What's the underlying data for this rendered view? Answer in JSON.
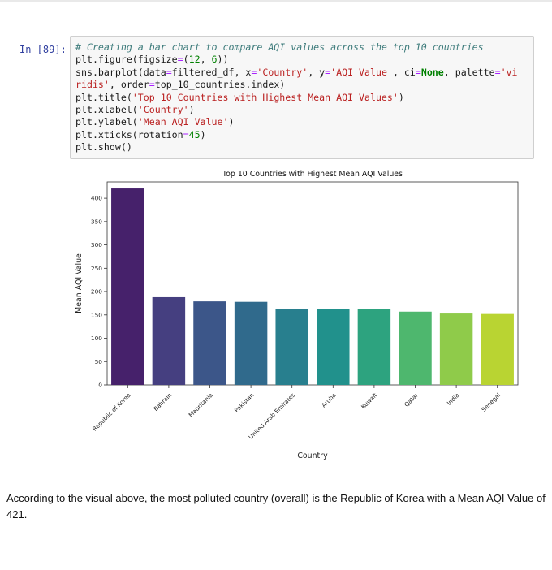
{
  "cell": {
    "prompt": "In [89]:",
    "code_lines": [
      [
        {
          "t": "# Creating a bar chart to compare AQI values across the top 10 countries",
          "c": "cm"
        }
      ],
      [
        {
          "t": "plt.figure(figsize",
          "c": ""
        },
        {
          "t": "=",
          "c": "op"
        },
        {
          "t": "(",
          "c": ""
        },
        {
          "t": "12",
          "c": "nm"
        },
        {
          "t": ", ",
          "c": ""
        },
        {
          "t": "6",
          "c": "nm"
        },
        {
          "t": "))",
          "c": ""
        }
      ],
      [
        {
          "t": "sns.barplot(data",
          "c": ""
        },
        {
          "t": "=",
          "c": "op"
        },
        {
          "t": "filtered_df, x",
          "c": ""
        },
        {
          "t": "=",
          "c": "op"
        },
        {
          "t": "'Country'",
          "c": "st"
        },
        {
          "t": ", y",
          "c": ""
        },
        {
          "t": "=",
          "c": "op"
        },
        {
          "t": "'AQI Value'",
          "c": "st"
        },
        {
          "t": ", ci",
          "c": ""
        },
        {
          "t": "=",
          "c": "op"
        },
        {
          "t": "None",
          "c": "kw"
        },
        {
          "t": ", palette",
          "c": ""
        },
        {
          "t": "=",
          "c": "op"
        },
        {
          "t": "'vi",
          "c": "st"
        }
      ],
      [
        {
          "t": "ridis'",
          "c": "st"
        },
        {
          "t": ", order",
          "c": ""
        },
        {
          "t": "=",
          "c": "op"
        },
        {
          "t": "top_10_countries.index)",
          "c": ""
        }
      ],
      [
        {
          "t": "plt.title(",
          "c": ""
        },
        {
          "t": "'Top 10 Countries with Highest Mean AQI Values'",
          "c": "st"
        },
        {
          "t": ")",
          "c": ""
        }
      ],
      [
        {
          "t": "plt.xlabel(",
          "c": ""
        },
        {
          "t": "'Country'",
          "c": "st"
        },
        {
          "t": ")",
          "c": ""
        }
      ],
      [
        {
          "t": "plt.ylabel(",
          "c": ""
        },
        {
          "t": "'Mean AQI Value'",
          "c": "st"
        },
        {
          "t": ")",
          "c": ""
        }
      ],
      [
        {
          "t": "plt.xticks(rotation",
          "c": ""
        },
        {
          "t": "=",
          "c": "op"
        },
        {
          "t": "45",
          "c": "nm"
        },
        {
          "t": ")",
          "c": ""
        }
      ],
      [
        {
          "t": "plt.show()",
          "c": ""
        }
      ]
    ]
  },
  "chart_data": {
    "type": "bar",
    "title": "Top 10 Countries with Highest Mean AQI Values",
    "xlabel": "Country",
    "ylabel": "Mean AQI Value",
    "categories": [
      "Republic of Korea",
      "Bahrain",
      "Mauritania",
      "Pakistan",
      "United Arab Emirates",
      "Aruba",
      "Kuwait",
      "Qatar",
      "India",
      "Senegal"
    ],
    "values": [
      421,
      188,
      179,
      178,
      163,
      163,
      162,
      157,
      153,
      152
    ],
    "colors": [
      "#46216b",
      "#453f80",
      "#3c5689",
      "#306a8c",
      "#287f8e",
      "#21918c",
      "#2da37f",
      "#4eb76e",
      "#8fcb4a",
      "#b9d432"
    ],
    "ylim": [
      0,
      435
    ],
    "yticks": [
      0,
      50,
      100,
      150,
      200,
      250,
      300,
      350,
      400
    ],
    "grid": false
  },
  "prose": {
    "text": "According to the visual above, the most polluted country (overall) is the Republic of Korea with a Mean AQI Value of 421."
  }
}
